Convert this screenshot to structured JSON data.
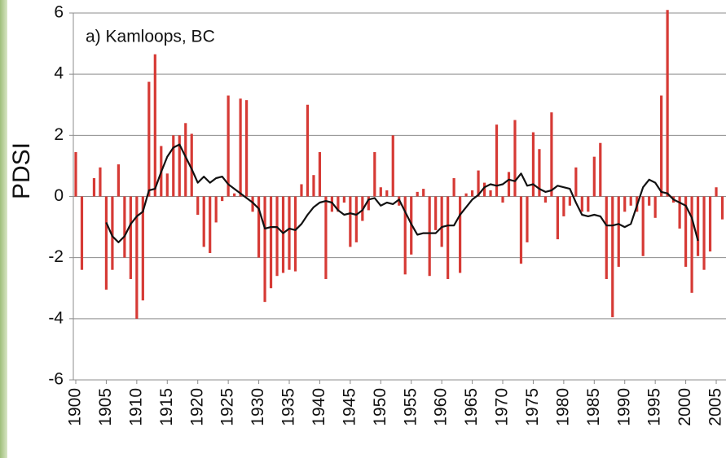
{
  "chart_data": {
    "type": "bar",
    "annotation": "a) Kamloops, BC",
    "y_label": "PDSI",
    "x": [
      1900,
      1901,
      1902,
      1903,
      1904,
      1905,
      1906,
      1907,
      1908,
      1909,
      1910,
      1911,
      1912,
      1913,
      1914,
      1915,
      1916,
      1917,
      1918,
      1919,
      1920,
      1921,
      1922,
      1923,
      1924,
      1925,
      1926,
      1927,
      1928,
      1929,
      1930,
      1931,
      1932,
      1933,
      1934,
      1935,
      1936,
      1937,
      1938,
      1939,
      1940,
      1941,
      1942,
      1943,
      1944,
      1945,
      1946,
      1947,
      1948,
      1949,
      1950,
      1951,
      1952,
      1953,
      1954,
      1955,
      1956,
      1957,
      1958,
      1959,
      1960,
      1961,
      1962,
      1963,
      1964,
      1965,
      1966,
      1967,
      1968,
      1969,
      1970,
      1971,
      1972,
      1973,
      1974,
      1975,
      1976,
      1977,
      1978,
      1979,
      1980,
      1981,
      1982,
      1983,
      1984,
      1985,
      1986,
      1987,
      1988,
      1989,
      1990,
      1991,
      1992,
      1993,
      1994,
      1995,
      1996,
      1997,
      1998,
      1999,
      2000,
      2001,
      2002,
      2003,
      2004,
      2005,
      2006
    ],
    "series": [
      {
        "type": "bar",
        "color": "#d63a35",
        "values": [
          1.45,
          -2.4,
          0,
          0.6,
          0.95,
          -3.05,
          -2.4,
          1.05,
          -2.0,
          -2.7,
          -4.0,
          -3.4,
          3.75,
          4.65,
          1.65,
          0.75,
          2.0,
          2.0,
          2.4,
          2.05,
          -0.6,
          -1.65,
          -1.85,
          -0.85,
          -0.15,
          3.3,
          0.1,
          3.2,
          3.15,
          -0.5,
          -2.0,
          -3.45,
          -3.0,
          -2.6,
          -2.5,
          -2.4,
          -2.45,
          0.4,
          3.0,
          0.7,
          1.45,
          -2.7,
          -0.5,
          -0.5,
          -0.2,
          -1.65,
          -1.5,
          -0.8,
          -0.45,
          1.45,
          0.3,
          0.2,
          2.0,
          -0.3,
          -2.55,
          -1.9,
          0.15,
          0.25,
          -2.6,
          -1.1,
          -1.65,
          -2.7,
          0.6,
          -2.5,
          0.1,
          0.2,
          0.85,
          0.45,
          0.2,
          2.35,
          -0.2,
          0.8,
          2.5,
          -2.2,
          -1.5,
          2.1,
          1.55,
          -0.2,
          2.75,
          -1.4,
          -0.65,
          -0.3,
          0.95,
          -0.5,
          -0.5,
          1.3,
          1.75,
          -2.7,
          -3.95,
          -2.3,
          -0.5,
          -0.3,
          -0.5,
          -1.95,
          -0.3,
          -0.7,
          3.3,
          6.1,
          -0.2,
          -1.05,
          -2.3,
          -3.15,
          -1.95,
          -2.4,
          -1.8,
          0.3,
          -0.75
        ]
      },
      {
        "type": "line",
        "color": "#111111",
        "values": [
          null,
          null,
          null,
          null,
          null,
          -0.85,
          -1.3,
          -1.5,
          -1.3,
          -0.9,
          -0.65,
          -0.5,
          0.2,
          0.25,
          0.8,
          1.3,
          1.6,
          1.7,
          1.3,
          0.9,
          0.45,
          0.65,
          0.45,
          0.6,
          0.65,
          0.4,
          0.25,
          0.1,
          -0.05,
          -0.2,
          -0.4,
          -1.05,
          -1.0,
          -1.0,
          -1.2,
          -1.05,
          -1.1,
          -0.9,
          -0.6,
          -0.35,
          -0.2,
          -0.15,
          -0.2,
          -0.45,
          -0.6,
          -0.55,
          -0.6,
          -0.45,
          -0.1,
          -0.05,
          -0.3,
          -0.2,
          -0.25,
          -0.1,
          -0.5,
          -0.9,
          -1.25,
          -1.2,
          -1.2,
          -1.2,
          -1.0,
          -0.95,
          -0.95,
          -0.6,
          -0.35,
          -0.1,
          0.05,
          0.3,
          0.4,
          0.35,
          0.4,
          0.55,
          0.5,
          0.75,
          0.35,
          0.4,
          0.25,
          0.15,
          0.2,
          0.35,
          0.3,
          0.25,
          -0.2,
          -0.6,
          -0.65,
          -0.6,
          -0.65,
          -0.95,
          -0.95,
          -0.9,
          -1.0,
          -0.9,
          -0.3,
          0.3,
          0.55,
          0.45,
          0.15,
          0.1,
          -0.1,
          -0.2,
          -0.3,
          -0.7,
          -1.45,
          null,
          null,
          null,
          null
        ]
      }
    ],
    "xlim": [
      1899.6,
      2006.6
    ],
    "xticks": [
      1900,
      1905,
      1910,
      1915,
      1920,
      1925,
      1930,
      1935,
      1940,
      1945,
      1950,
      1955,
      1960,
      1965,
      1970,
      1975,
      1980,
      1985,
      1990,
      1995,
      2000,
      2005
    ],
    "ylim": [
      -6,
      6
    ],
    "yticks": [
      6,
      4,
      2,
      0,
      -2,
      -4,
      -6
    ],
    "grid": true
  }
}
